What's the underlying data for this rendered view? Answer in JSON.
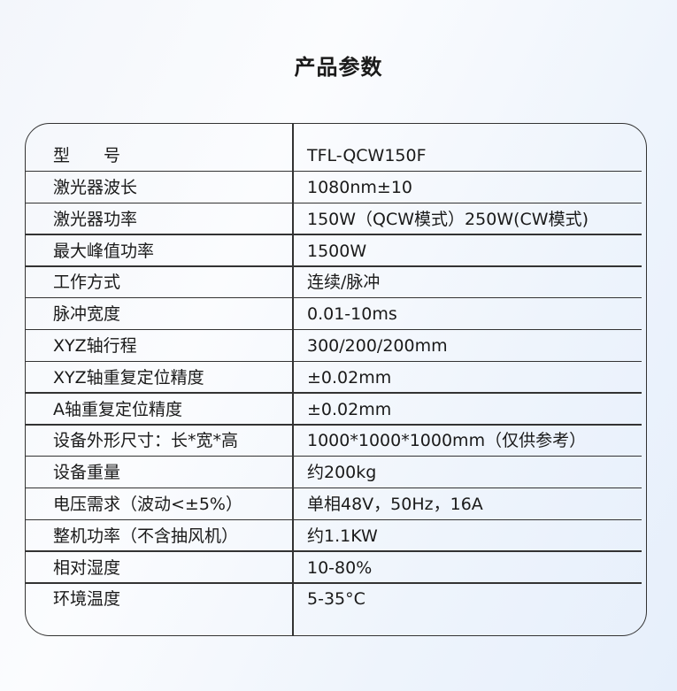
{
  "title": "产品参数",
  "specs": [
    {
      "label": "型　　号",
      "value": "TFL-QCW150F"
    },
    {
      "label": "激光器波长",
      "value": "1080nm±10"
    },
    {
      "label": "激光器功率",
      "value": "150W（QCW模式）250W(CW模式)"
    },
    {
      "label": "最大峰值功率",
      "value": "1500W"
    },
    {
      "label": "工作方式",
      "value": "连续/脉冲"
    },
    {
      "label": "脉冲宽度",
      "value": "0.01-10ms"
    },
    {
      "label": "XYZ轴行程",
      "value": "300/200/200mm"
    },
    {
      "label": "XYZ轴重复定位精度",
      "value": "±0.02mm"
    },
    {
      "label": "A轴重复定位精度",
      "value": "±0.02mm"
    },
    {
      "label": "设备外形尺寸：长*宽*高",
      "value": "1000*1000*1000mm（仅供参考）"
    },
    {
      "label": "设备重量",
      "value": "约200kg"
    },
    {
      "label": "电压需求（波动<±5%）",
      "value": "单相48V，50Hz，16A"
    },
    {
      "label": "整机功率（不含抽风机）",
      "value": "约1.1KW"
    },
    {
      "label": "相对湿度",
      "value": "10-80%"
    },
    {
      "label": "环境温度",
      "value": "5-35°C"
    }
  ]
}
